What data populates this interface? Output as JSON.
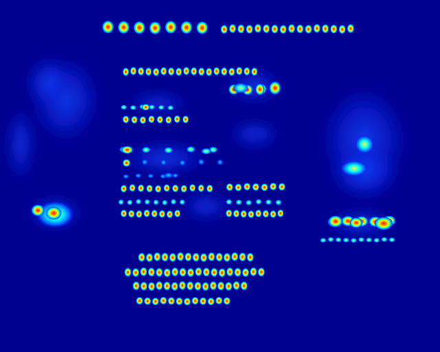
{
  "colors": {
    "background": "#00008f",
    "low": "#0000ff",
    "mid": "#00ffff",
    "high": "#ffff00",
    "peak": "#ff0000"
  },
  "colormap": "jet",
  "heatmap_regions": [
    {
      "name": "title-line-1",
      "intensity": 1.0
    },
    {
      "name": "title-line-2",
      "intensity": 0.9
    },
    {
      "name": "subtitle-line",
      "intensity": 0.8
    },
    {
      "name": "body-text-lines",
      "intensity": 0.75
    },
    {
      "name": "left-image-blob",
      "intensity": 0.9
    },
    {
      "name": "right-image-area",
      "intensity": 0.5
    },
    {
      "name": "right-caption-lines",
      "intensity": 0.85
    },
    {
      "name": "bottom-text-block",
      "intensity": 0.85
    }
  ]
}
